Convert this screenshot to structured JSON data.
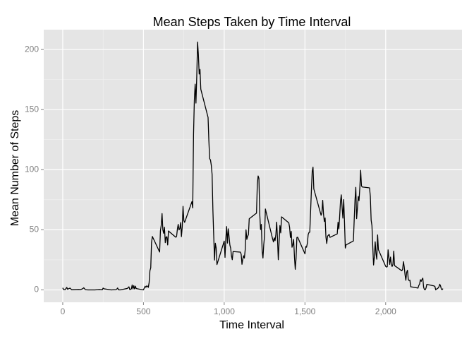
{
  "chart_data": {
    "type": "line",
    "title": "Mean Steps Taken by Time Interval",
    "x_label": "Time Interval",
    "y_label": "Mean Number of Steps",
    "x": [
      0,
      5,
      15,
      25,
      30,
      35,
      45,
      55,
      100,
      110,
      125,
      130,
      140,
      155,
      200,
      215,
      230,
      245,
      250,
      255,
      300,
      330,
      335,
      340,
      345,
      355,
      400,
      410,
      415,
      420,
      425,
      430,
      435,
      440,
      445,
      450,
      455,
      500,
      505,
      510,
      515,
      520,
      525,
      530,
      535,
      540,
      545,
      550,
      555,
      600,
      605,
      610,
      615,
      620,
      625,
      630,
      635,
      640,
      645,
      650,
      655,
      700,
      705,
      710,
      715,
      720,
      725,
      730,
      735,
      740,
      745,
      750,
      755,
      800,
      805,
      810,
      815,
      820,
      825,
      830,
      835,
      840,
      845,
      850,
      855,
      900,
      905,
      910,
      915,
      920,
      925,
      930,
      935,
      940,
      945,
      950,
      955,
      1000,
      1005,
      1010,
      1015,
      1020,
      1025,
      1030,
      1035,
      1040,
      1045,
      1050,
      1055,
      1100,
      1105,
      1110,
      1115,
      1120,
      1125,
      1130,
      1135,
      1140,
      1145,
      1150,
      1155,
      1200,
      1205,
      1210,
      1215,
      1220,
      1225,
      1230,
      1235,
      1240,
      1245,
      1250,
      1255,
      1300,
      1305,
      1310,
      1315,
      1320,
      1325,
      1330,
      1335,
      1340,
      1345,
      1350,
      1355,
      1400,
      1405,
      1410,
      1415,
      1420,
      1425,
      1430,
      1435,
      1440,
      1445,
      1450,
      1455,
      1500,
      1505,
      1510,
      1515,
      1520,
      1525,
      1530,
      1535,
      1540,
      1545,
      1550,
      1555,
      1600,
      1605,
      1610,
      1615,
      1620,
      1625,
      1630,
      1635,
      1640,
      1645,
      1650,
      1655,
      1700,
      1705,
      1710,
      1715,
      1720,
      1725,
      1730,
      1735,
      1740,
      1745,
      1750,
      1755,
      1800,
      1805,
      1810,
      1815,
      1820,
      1825,
      1830,
      1835,
      1840,
      1845,
      1850,
      1855,
      1900,
      1905,
      1910,
      1915,
      1920,
      1925,
      1930,
      1935,
      1940,
      1945,
      1950,
      1955,
      2000,
      2005,
      2010,
      2015,
      2020,
      2025,
      2030,
      2035,
      2040,
      2045,
      2050,
      2055,
      2100,
      2105,
      2110,
      2115,
      2120,
      2125,
      2130,
      2135,
      2140,
      2145,
      2150,
      2155,
      2200,
      2205,
      2210,
      2215,
      2220,
      2225,
      2230,
      2235,
      2240,
      2245,
      2250,
      2255,
      2300,
      2305,
      2310,
      2315,
      2320,
      2325,
      2330,
      2335,
      2340,
      2345,
      2350,
      2355
    ],
    "series": [
      {
        "color": "#000000",
        "values": [
          1.7,
          0.3,
          0.2,
          2.1,
          0.5,
          0.9,
          1.5,
          0.1,
          0.3,
          0.2,
          1.1,
          1.8,
          0.2,
          0,
          0,
          0.2,
          0.3,
          0.1,
          1.5,
          0.9,
          0,
          0.2,
          0.7,
          1.6,
          0.1,
          0,
          1.2,
          2.6,
          0.3,
          0.4,
          0.9,
          4.1,
          0.7,
          3.5,
          0.8,
          3.1,
          1.1,
          0,
          1.6,
          3,
          2.2,
          3.3,
          3,
          2.1,
          6.1,
          16,
          18.3,
          39.5,
          44.5,
          31.5,
          49.3,
          53.8,
          63.5,
          50,
          47.1,
          52.2,
          39.3,
          44,
          44.2,
          37.4,
          49,
          43.8,
          44.4,
          50.5,
          54.5,
          49.9,
          51,
          56,
          44.3,
          52.3,
          69.5,
          57.8,
          56.2,
          73.4,
          68.2,
          129.4,
          157.5,
          171.2,
          155.4,
          177.3,
          206.2,
          195.9,
          179.6,
          183.4,
          167,
          143.5,
          124,
          109.1,
          108.1,
          103.7,
          96,
          66.2,
          45.2,
          24.8,
          38.8,
          35,
          21.1,
          40.6,
          27,
          42.4,
          52.7,
          38.9,
          50.8,
          44.3,
          37.4,
          34.7,
          28.3,
          25.1,
          31.9,
          31.4,
          29.7,
          21.3,
          25.5,
          28.4,
          26.5,
          33.4,
          50,
          42,
          44.6,
          46,
          59.2,
          63.9,
          87.7,
          94.8,
          92.8,
          63.4,
          50.2,
          54.5,
          32.4,
          26.5,
          37.7,
          45,
          67.3,
          42.3,
          39.9,
          43.3,
          41,
          46.2,
          56.4,
          42.8,
          25.1,
          40,
          53.5,
          47.4,
          60.8,
          55.8,
          52,
          43.6,
          48.7,
          35.5,
          37.5,
          42,
          27.5,
          17.1,
          26.1,
          43.6,
          43.8,
          30,
          36.1,
          35.5,
          38.8,
          46,
          47.8,
          48.1,
          65.3,
          82.9,
          98.7,
          102.1,
          84,
          62.1,
          64.1,
          74.5,
          63.2,
          56.9,
          59.8,
          43.9,
          38.6,
          44.7,
          45.5,
          46.2,
          43.7,
          46.6,
          56.3,
          50.7,
          61.2,
          73.4,
          79.1,
          68.9,
          59.7,
          75.1,
          56.5,
          34.8,
          37.5,
          40.7,
          58,
          74.7,
          85.3,
          59.3,
          67.8,
          77.7,
          74.2,
          85.3,
          99.5,
          86.6,
          85.6,
          84.9,
          77.8,
          58,
          53.4,
          36.3,
          20.7,
          27.4,
          40,
          30.2,
          25.5,
          45.7,
          33.5,
          19.6,
          19,
          19.3,
          33.3,
          26.8,
          21.2,
          27.3,
          21.3,
          19.5,
          21.3,
          32.3,
          20.2,
          15.9,
          17.2,
          23.5,
          19.2,
          12.5,
          8,
          14.7,
          16.3,
          8.7,
          7.8,
          8.1,
          2.6,
          1.5,
          3.7,
          4.8,
          8.5,
          7.1,
          8.7,
          9.8,
          2.2,
          0.3,
          0.1,
          1.6,
          4.6,
          3.3,
          2.8,
          0,
          0.8,
          1,
          1.6,
          2.6,
          4.7,
          3.3,
          0.6,
          0.2,
          1.1
        ]
      }
    ],
    "xlim": [
      -117.75,
      2472.75
    ],
    "xticks": [
      0,
      500,
      {
        "value": 1000,
        "label": "1,000"
      },
      {
        "value": 1500,
        "label": "1,500"
      },
      {
        "value": 2000,
        "label": "2,000"
      }
    ],
    "ylim": [
      -10.3,
      216.5
    ],
    "yticks": [
      0,
      50,
      100,
      150,
      200
    ],
    "grid": true,
    "minor_grid": true
  }
}
